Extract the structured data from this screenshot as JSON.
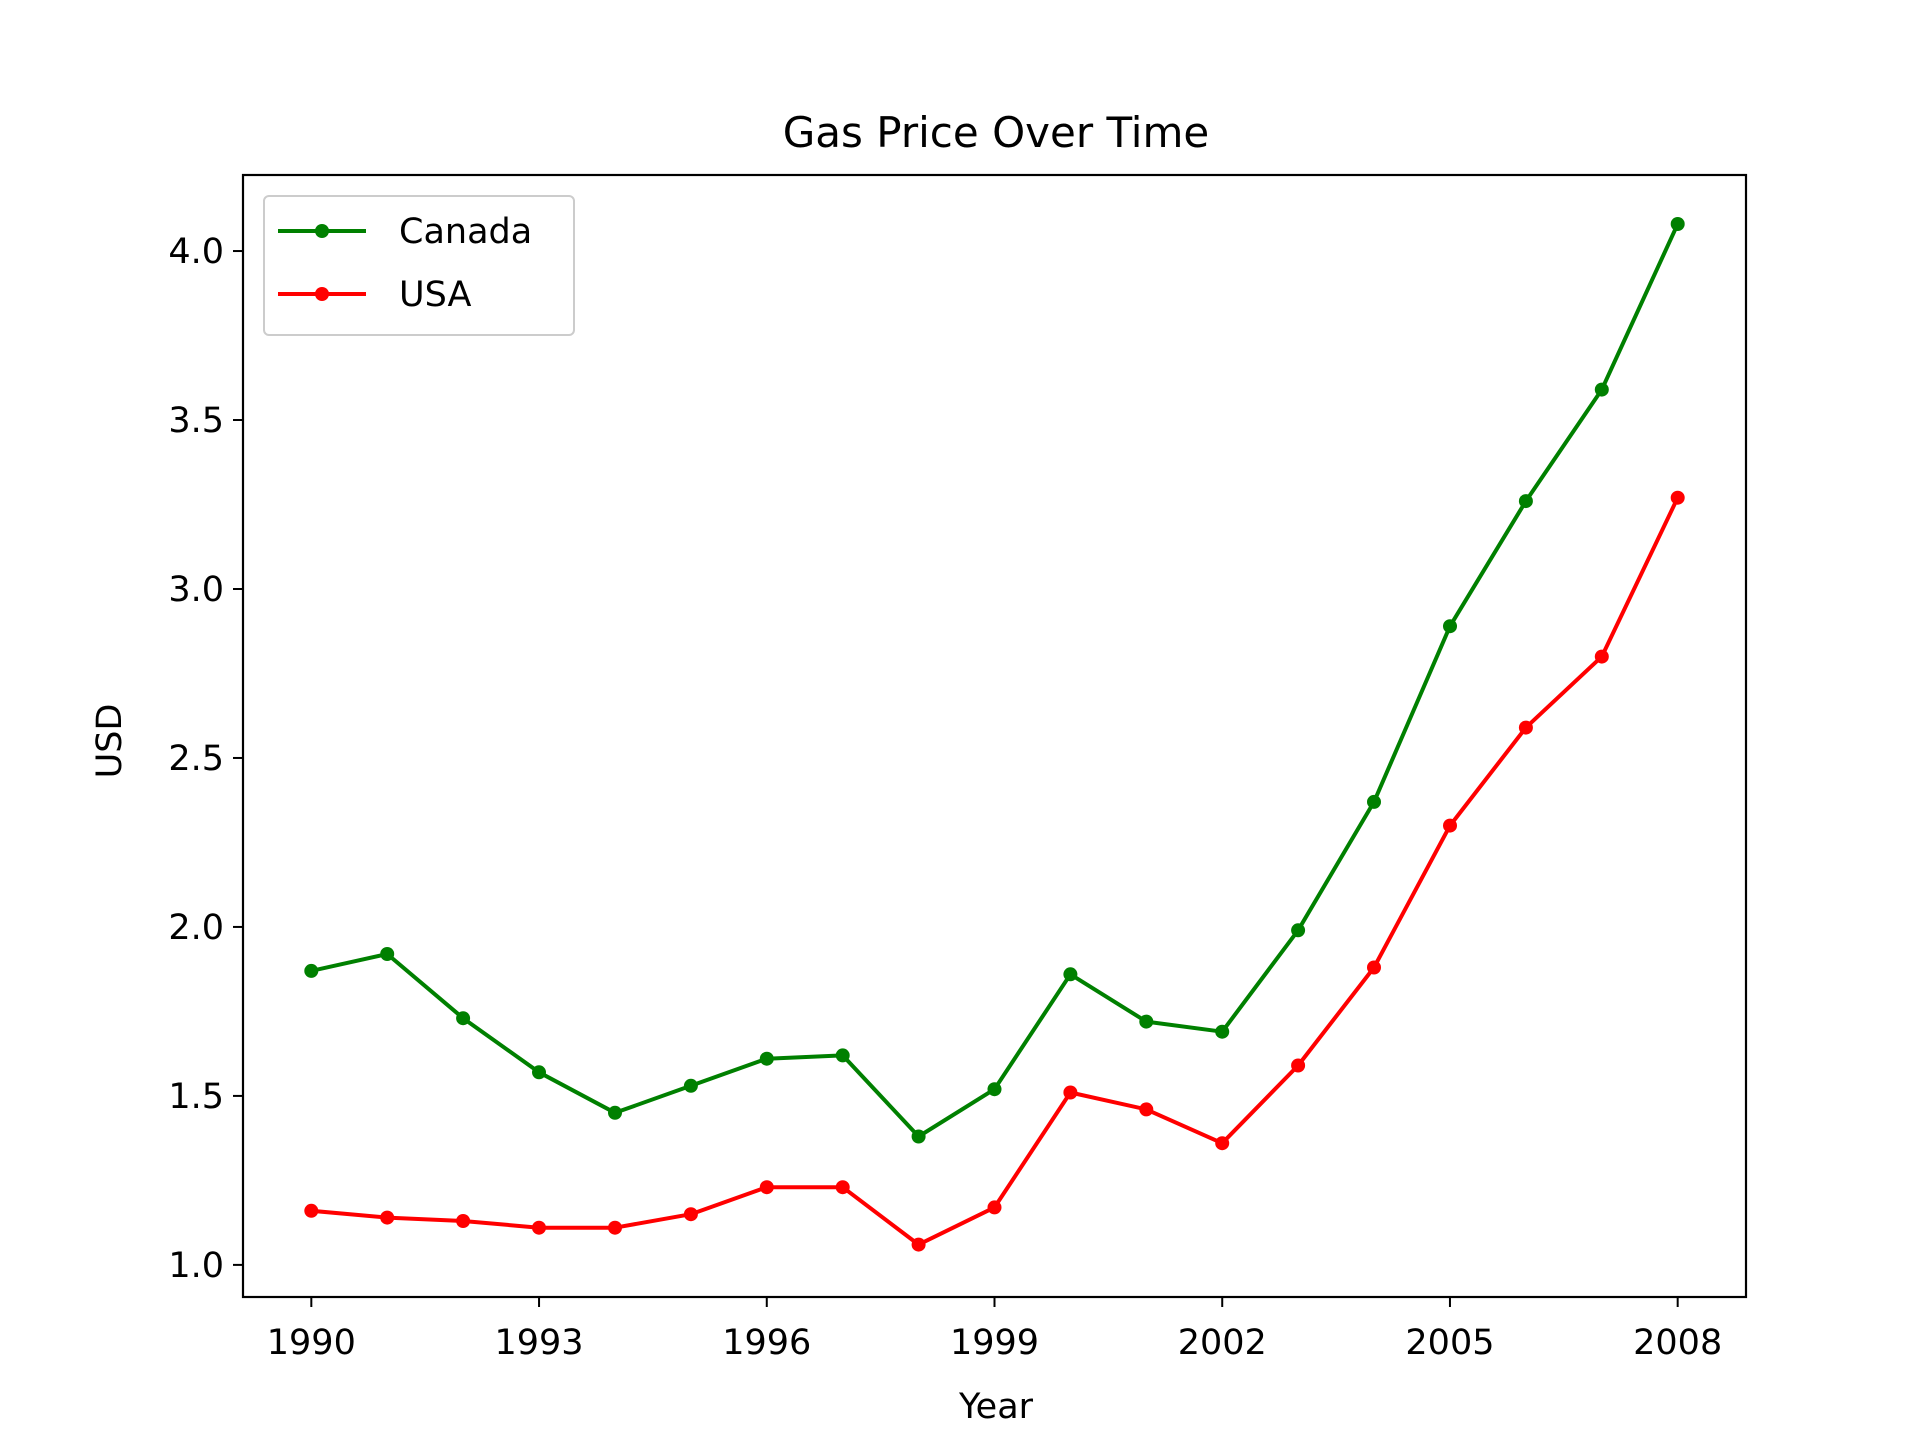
{
  "chart_data": {
    "type": "line",
    "title": "Gas Price Over Time",
    "xlabel": "Year",
    "ylabel": "USD",
    "x": [
      1990,
      1991,
      1992,
      1993,
      1994,
      1995,
      1996,
      1997,
      1998,
      1999,
      2000,
      2001,
      2002,
      2003,
      2004,
      2005,
      2006,
      2007,
      2008
    ],
    "xticks": [
      1990,
      1993,
      1996,
      1999,
      2002,
      2005,
      2008
    ],
    "yticks": [
      1.0,
      1.5,
      2.0,
      2.5,
      3.0,
      3.5,
      4.0
    ],
    "xlim": [
      1989.1,
      2008.9
    ],
    "ylim": [
      0.905,
      4.225
    ],
    "grid": false,
    "legend_position": "upper-left",
    "series": [
      {
        "name": "Canada",
        "color": "#008000",
        "marker": "dot",
        "values": [
          1.87,
          1.92,
          1.73,
          1.57,
          1.45,
          1.53,
          1.61,
          1.62,
          1.38,
          1.52,
          1.86,
          1.72,
          1.69,
          1.99,
          2.37,
          2.89,
          3.26,
          3.59,
          4.08
        ]
      },
      {
        "name": "USA",
        "color": "#ff0000",
        "marker": "dot",
        "values": [
          1.16,
          1.14,
          1.13,
          1.11,
          1.11,
          1.15,
          1.23,
          1.23,
          1.06,
          1.17,
          1.51,
          1.46,
          1.36,
          1.59,
          1.88,
          2.3,
          2.59,
          2.8,
          3.27
        ]
      }
    ]
  }
}
